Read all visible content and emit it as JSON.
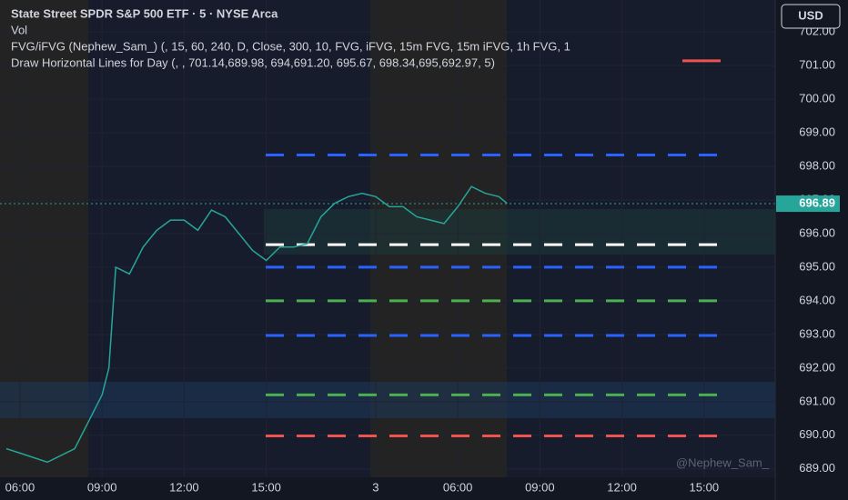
{
  "chart_data": {
    "type": "line",
    "title": "State Street SPDR S&P 500 ETF · 5 · NYSE Arca",
    "indicators": [
      "Vol",
      "FVG/iFVG (Nephew_Sam_) (, 15, 60, 240, D, Close, 300, 10, FVG, iFVG, 15m FVG, 15m iFVG, 1h FVG, 1",
      "Draw Horizontal Lines for Day (, , 701.14,689.98, 694,691.20, 695.67, 698.34,695,692.97, 5)"
    ],
    "currency": "USD",
    "watermark": "@Nephew_Sam_",
    "last_price": 696.89,
    "x": [
      5.5,
      6,
      7,
      8,
      9,
      9.25,
      9.5,
      10,
      10.5,
      11,
      11.5,
      12,
      12.5,
      13,
      13.5,
      14,
      14.5,
      15,
      15.5,
      16,
      16.5,
      17,
      17.5,
      18,
      18.5,
      19,
      19.5,
      20,
      20.5,
      21,
      21.5,
      22,
      22.5,
      23,
      23.5,
      23.8
    ],
    "series": [
      {
        "color": "#26a69a",
        "values": [
          689.6,
          689.47,
          689.2,
          689.6,
          691.2,
          692,
          695,
          694.8,
          695.6,
          696.1,
          696.4,
          696.4,
          696.1,
          696.7,
          696.5,
          696,
          695.5,
          695.2,
          695.6,
          695.6,
          695.7,
          696.5,
          696.9,
          697.1,
          697.2,
          697.1,
          696.8,
          696.8,
          696.5,
          696.4,
          696.3,
          696.8,
          697.4,
          697.2,
          697.1,
          696.9
        ]
      }
    ],
    "levels": [
      {
        "value": 698.34,
        "color": "#2962ff"
      },
      {
        "value": 695.67,
        "color": "#ffffff"
      },
      {
        "value": 695,
        "color": "#2962ff"
      },
      {
        "value": 694,
        "color": "#4caf50"
      },
      {
        "value": 692.97,
        "color": "#2962ff"
      },
      {
        "value": 691.2,
        "color": "#4caf50"
      },
      {
        "value": 689.98,
        "color": "#ef5350"
      },
      {
        "value": 701.14,
        "color": "#ef5350"
      }
    ],
    "xlim": [
      5.27,
      33.6
    ],
    "ylim": [
      688.75,
      702.95
    ],
    "xticks": [
      {
        "value": 6,
        "label": "06:00"
      },
      {
        "value": 9,
        "label": "09:00"
      },
      {
        "value": 12,
        "label": "12:00"
      },
      {
        "value": 15,
        "label": "15:00"
      },
      {
        "value": 19,
        "label": "3"
      },
      {
        "value": 22,
        "label": "06:00"
      },
      {
        "value": 25,
        "label": "09:00"
      },
      {
        "value": 28,
        "label": "12:00"
      },
      {
        "value": 31,
        "label": "15:00"
      }
    ],
    "yticks": [
      {
        "value": 689,
        "label": "689.00"
      },
      {
        "value": 690,
        "label": "690.00"
      },
      {
        "value": 691,
        "label": "691.00"
      },
      {
        "value": 692,
        "label": "692.00"
      },
      {
        "value": 693,
        "label": "693.00"
      },
      {
        "value": 694,
        "label": "694.00"
      },
      {
        "value": 695,
        "label": "695.00"
      },
      {
        "value": 696,
        "label": "696.00"
      },
      {
        "value": 697,
        "label": "697.00"
      },
      {
        "value": 698,
        "label": "698.00"
      },
      {
        "value": 699,
        "label": "699.00"
      },
      {
        "value": 700,
        "label": "700.00"
      },
      {
        "value": 701,
        "label": "701.00"
      },
      {
        "value": 702,
        "label": "702.00"
      }
    ],
    "grid": true
  }
}
